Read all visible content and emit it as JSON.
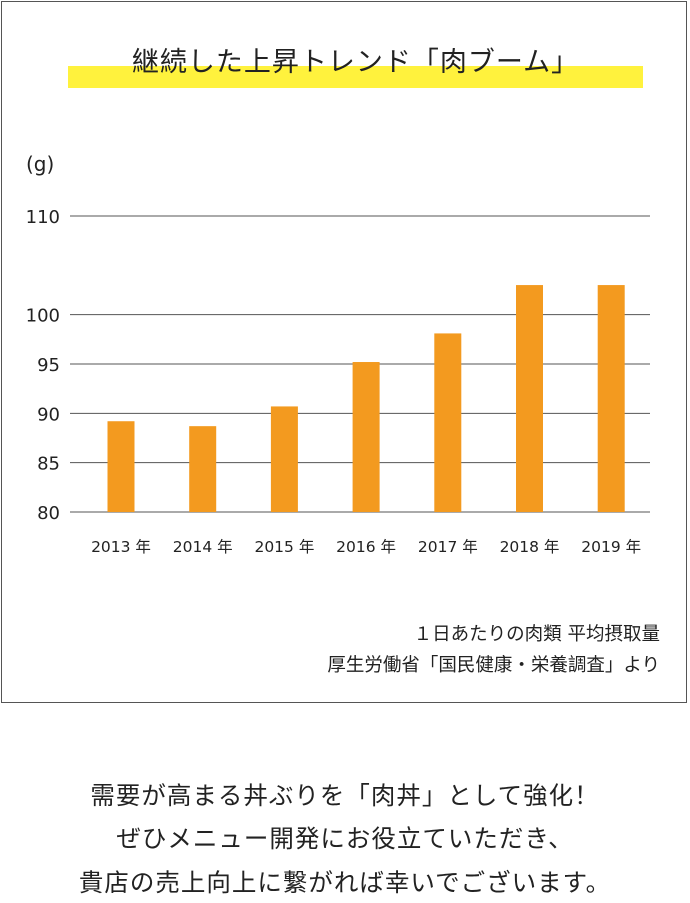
{
  "chart_data": {
    "type": "bar",
    "title": "継続した上昇トレンド「肉ブーム」",
    "unit": "(g)",
    "categories": [
      "2013 年",
      "2014 年",
      "2015 年",
      "2016 年",
      "2017 年",
      "2018 年",
      "2019 年"
    ],
    "values": [
      89.2,
      88.7,
      90.7,
      95.2,
      98.1,
      103.0,
      103.0
    ],
    "ylim": [
      80,
      110
    ],
    "yticks": [
      80,
      85,
      90,
      95,
      100,
      110
    ],
    "grid": true,
    "bar_color": "#f39a1f",
    "highlight_color": "#fff23d"
  },
  "source": {
    "line1": "１日あたりの肉類 平均摂取量",
    "line2": "厚生労働省「国民健康・栄養調査」より"
  },
  "footer": {
    "line1": "需要が高まる丼ぶりを「肉丼」として強化！",
    "line2": "ぜひメニュー開発にお役立ていただき、",
    "line3": "貴店の売上向上に繋がれば幸いでございます。"
  }
}
